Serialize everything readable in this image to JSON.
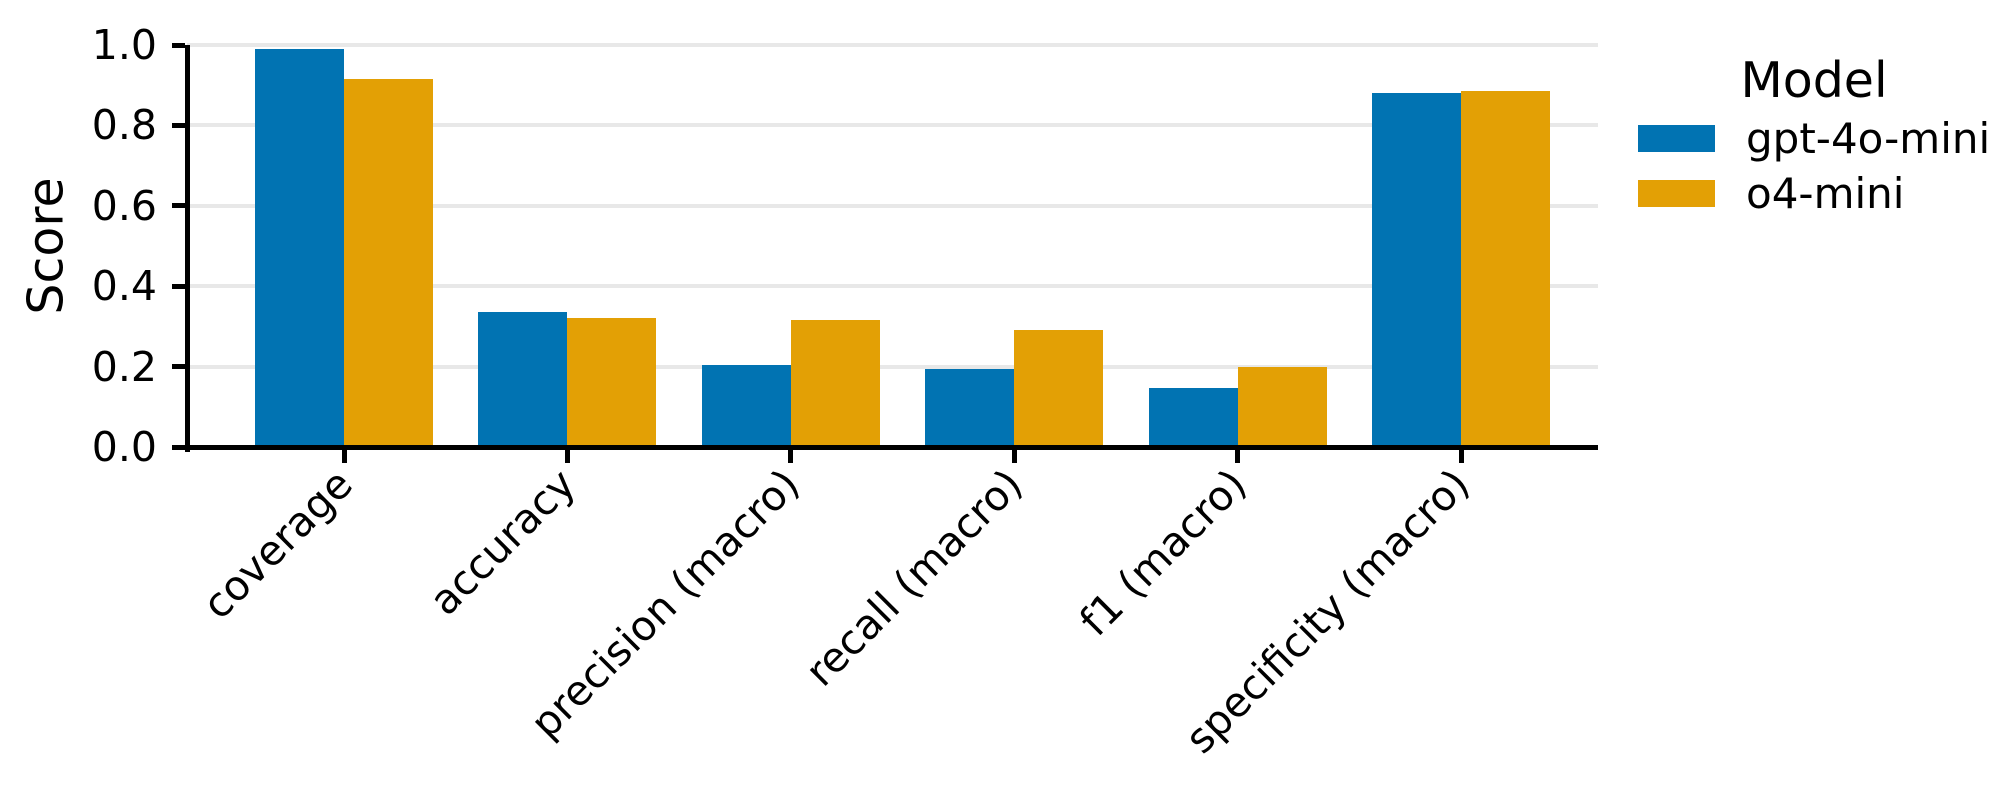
{
  "chart_data": {
    "type": "bar",
    "title": "",
    "xlabel": "",
    "ylabel": "Score",
    "categories": [
      "coverage",
      "accuracy",
      "precision (macro)",
      "recall (macro)",
      "f1 (macro)",
      "specificity (macro)"
    ],
    "series": [
      {
        "name": "gpt-4o-mini",
        "color": "#0173b2",
        "values": [
          0.99,
          0.335,
          0.205,
          0.195,
          0.148,
          0.88
        ]
      },
      {
        "name": "o4-mini",
        "color": "#e3a005",
        "values": [
          0.915,
          0.32,
          0.315,
          0.29,
          0.2,
          0.885
        ]
      }
    ],
    "ylim": [
      0.0,
      1.0
    ],
    "yticks": [
      0.0,
      0.2,
      0.4,
      0.6,
      0.8,
      1.0
    ],
    "ytick_labels": [
      "0.0",
      "0.2",
      "0.4",
      "0.6",
      "0.8",
      "1.0"
    ],
    "grid": true,
    "legend": {
      "title": "Model",
      "position": "outside-upper-right"
    },
    "colors": {
      "grid": "#e8e8e8",
      "axis": "#000000",
      "text": "#000000"
    }
  }
}
